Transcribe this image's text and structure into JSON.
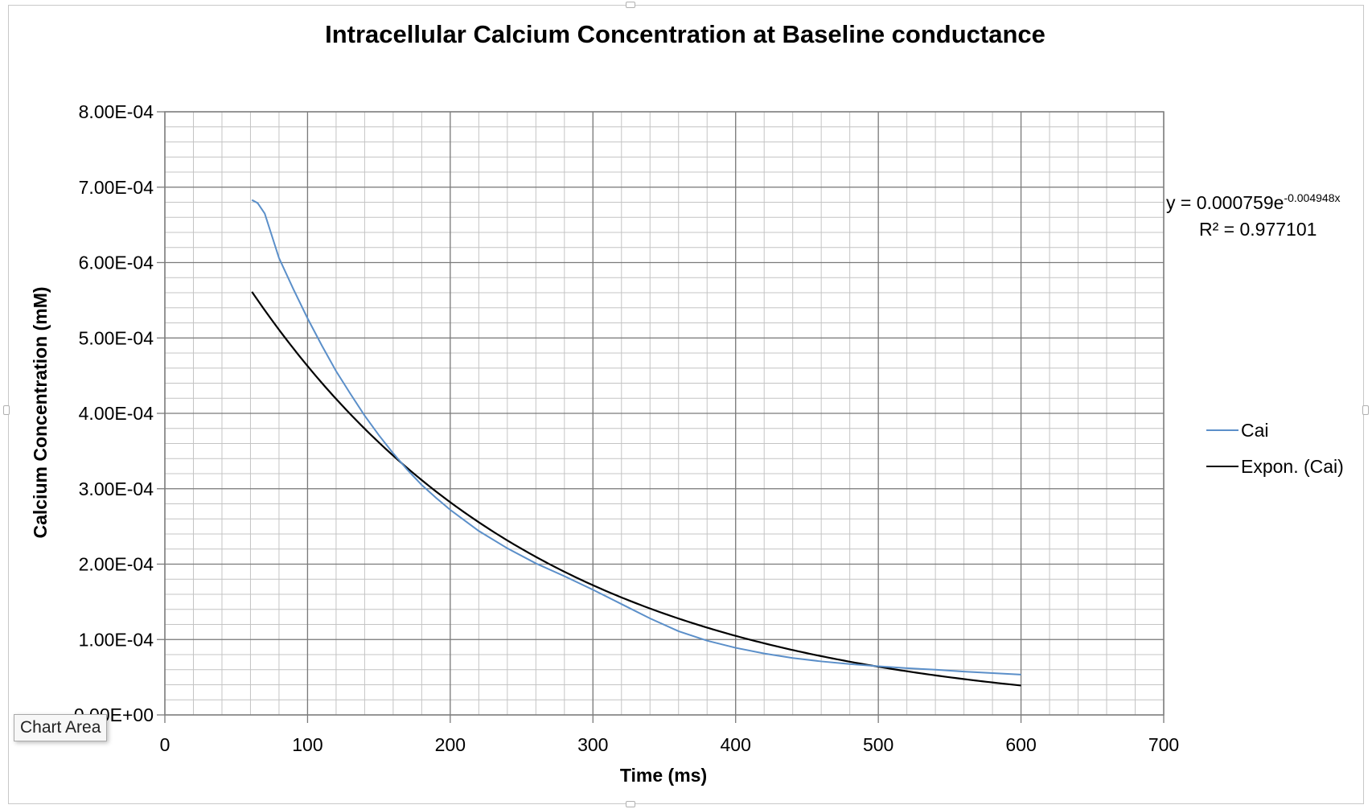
{
  "tooltip": "Chart Area",
  "chart_data": {
    "type": "line",
    "title": "Intracellular Calcium Concentration at Baseline conductance",
    "xlabel": "Time (ms)",
    "ylabel": "Calcium Concentration (mM)",
    "xlim": [
      0,
      700
    ],
    "ylim": [
      0,
      0.0008
    ],
    "x_ticks": [
      0,
      100,
      200,
      300,
      400,
      500,
      600,
      700
    ],
    "x_tick_labels": [
      "0",
      "100",
      "200",
      "300",
      "400",
      "500",
      "600",
      "700"
    ],
    "y_ticks": [
      0,
      0.0001,
      0.0002,
      0.0003,
      0.0004,
      0.0005,
      0.0006,
      0.0007,
      0.0008
    ],
    "y_tick_labels": [
      "0.00E+00",
      "1.00E-04",
      "2.00E-04",
      "3.00E-04",
      "4.00E-04",
      "5.00E-04",
      "6.00E-04",
      "7.00E-04",
      "8.00E-04"
    ],
    "grid": true,
    "legend_position": "right",
    "series": [
      {
        "name": "Cai",
        "color": "#5b8fc9",
        "x": [
          61,
          65,
          70,
          80,
          90,
          100,
          110,
          120,
          130,
          140,
          150,
          160,
          170,
          180,
          190,
          200,
          220,
          240,
          260,
          280,
          300,
          320,
          340,
          360,
          380,
          400,
          420,
          440,
          460,
          480,
          500,
          520,
          540,
          560,
          580,
          600
        ],
        "values": [
          0.000683,
          0.000679,
          0.000665,
          0.000606,
          0.000565,
          0.000526,
          0.00049,
          0.000456,
          0.000426,
          0.000397,
          0.000371,
          0.000347,
          0.000325,
          0.000305,
          0.000288,
          0.000272,
          0.000244,
          0.000221,
          0.000201,
          0.000184,
          0.000166,
          0.000147,
          0.000128,
          0.000111,
          9.85e-05,
          8.9e-05,
          8.15e-05,
          7.55e-05,
          7.1e-05,
          6.75e-05,
          6.45e-05,
          6.2e-05,
          6e-05,
          5.75e-05,
          5.55e-05,
          5.35e-05
        ]
      },
      {
        "name": "Expon. (Cai)",
        "color": "#000000",
        "trendline": {
          "form": "exponential",
          "a": 0.000759,
          "b": -0.004948,
          "x_range": [
            61,
            600
          ]
        }
      }
    ],
    "annotations": {
      "equation_prefix": "y = 0.000759e",
      "equation_exponent": "-0.004948x",
      "r_squared": "R² = 0.977101"
    }
  }
}
